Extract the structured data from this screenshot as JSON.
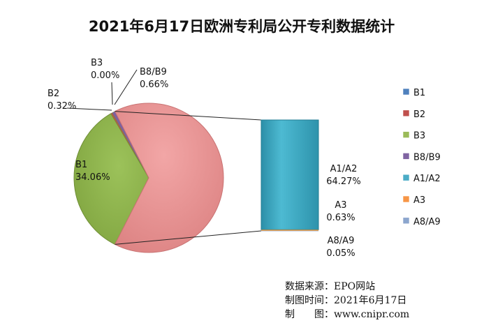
{
  "chart_data": {
    "type": "pie",
    "subtype": "pie-of-bar",
    "title": "2021年6月17日欧洲专利局公开专利数据统计",
    "pie_slices": [
      {
        "category": "B1",
        "label": "B1",
        "value_label": "34.06%",
        "value": 34.06,
        "color": "#8DB04B"
      },
      {
        "category": "B2",
        "label": "B2",
        "value_label": "0.32%",
        "value": 0.32,
        "color": "#C0504D"
      },
      {
        "category": "B3",
        "label": "B3",
        "value_label": "0.00%",
        "value": 0.0,
        "color": "#8DB04B"
      },
      {
        "category": "B8/B9",
        "label": "B8/B9",
        "value_label": "0.66%",
        "value": 0.66,
        "color": "#7E5FA1"
      },
      {
        "category": "Other",
        "label": "",
        "value_label": "",
        "value": 64.95,
        "color": "#E38A8A"
      }
    ],
    "bar_segments": [
      {
        "category": "A1/A2",
        "label": "A1/A2",
        "value_label": "64.27%",
        "value": 64.27,
        "color": "#3AABC3"
      },
      {
        "category": "A3",
        "label": "A3",
        "value_label": "0.63%",
        "value": 0.63,
        "color": "#E4953C"
      },
      {
        "category": "A8/A9",
        "label": "A8/A9",
        "value_label": "0.05%",
        "value": 0.05,
        "color": "#8FA8CF"
      }
    ],
    "legend": {
      "position": "right",
      "entries": [
        {
          "name": "B1",
          "color": "#4F81BD"
        },
        {
          "name": "B2",
          "color": "#C0504D"
        },
        {
          "name": "B3",
          "color": "#9BBB59"
        },
        {
          "name": "B8/B9",
          "color": "#8064A2"
        },
        {
          "name": "A1/A2",
          "color": "#4BACC6"
        },
        {
          "name": "A3",
          "color": "#F79646"
        },
        {
          "name": "A8/A9",
          "color": "#8CA6CE"
        }
      ]
    }
  },
  "source": {
    "line1": "数据来源：EPO网站",
    "line2": "制图时间：2021年6月17日",
    "line3": "制　　图：www.cnipr.com"
  }
}
